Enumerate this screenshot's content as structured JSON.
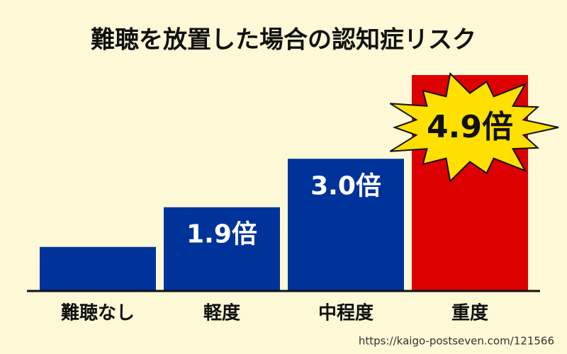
{
  "chart_data": {
    "type": "bar",
    "title": "難聴を放置した場合の認知症リスク",
    "categories": [
      "難聴なし",
      "軽度",
      "中程度",
      "重度"
    ],
    "values": [
      1,
      1.9,
      3.0,
      4.9
    ],
    "value_labels": [
      null,
      "1.9倍",
      "3.0倍",
      "4.9倍"
    ],
    "colors": [
      "#003399",
      "#003399",
      "#003399",
      "#dd0000"
    ],
    "source": "https://kaigo-postseven.com/121566"
  }
}
